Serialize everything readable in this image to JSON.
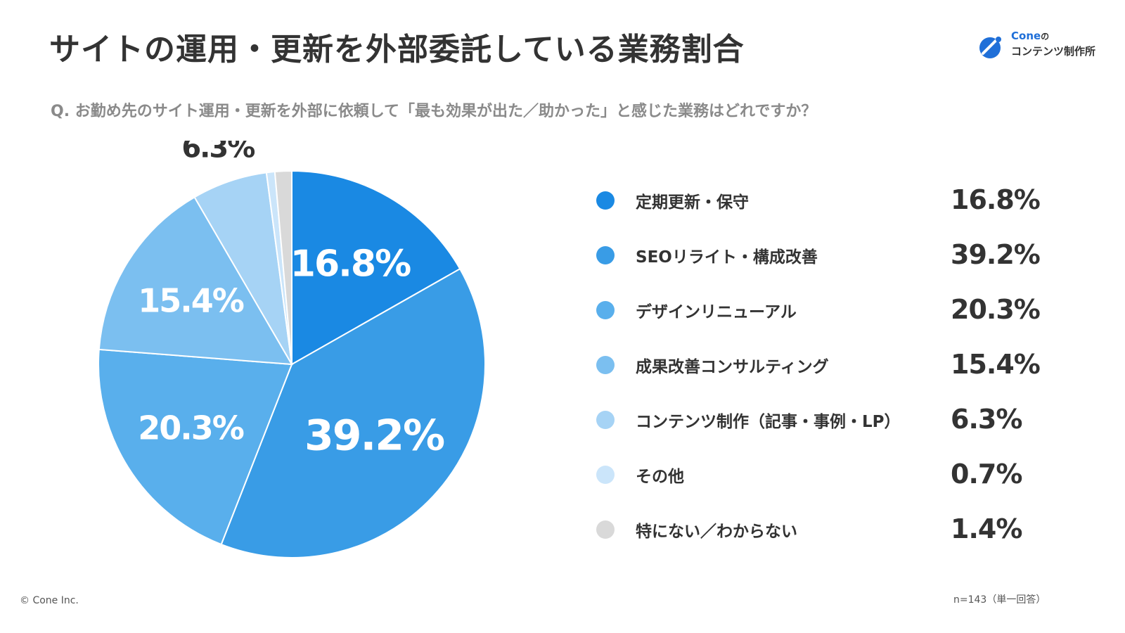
{
  "title": "サイトの運用・更新を外部委託している業務割合",
  "question": "Q. お勤め先のサイト運用・更新を外部に依頼して「最も効果が出た／助かった」と感じた業務はどれですか？",
  "logo": {
    "brand": "Cone",
    "particle": "の",
    "sub": "コンテンツ制作所"
  },
  "chart_data": {
    "type": "pie",
    "title": "サイトの運用・更新を外部委託している業務割合",
    "unit": "%",
    "legend_position": "right",
    "slices": [
      {
        "label": "定期更新・保守",
        "value": 16.8,
        "display": "16.8%",
        "color": "#1a89e3"
      },
      {
        "label": "SEOリライト・構成改善",
        "value": 39.2,
        "display": "39.2%",
        "color": "#399ce6"
      },
      {
        "label": "デザインリニューアル",
        "value": 20.3,
        "display": "20.3%",
        "color": "#59afec"
      },
      {
        "label": "成果改善コンサルティング",
        "value": 15.4,
        "display": "15.4%",
        "color": "#7bbff0"
      },
      {
        "label": "コンテンツ制作（記事・事例・LP）",
        "value": 6.3,
        "display": "6.3%",
        "color": "#a6d3f5"
      },
      {
        "label": "その他",
        "value": 0.7,
        "display": "0.7%",
        "color": "#cbe5fa"
      },
      {
        "label": "特にない／わからない",
        "value": 1.4,
        "display": "1.4%",
        "color": "#d9d9d9"
      }
    ]
  },
  "footer": {
    "copyright": "© Cone Inc.",
    "sample_note": "n=143（単一回答）"
  }
}
